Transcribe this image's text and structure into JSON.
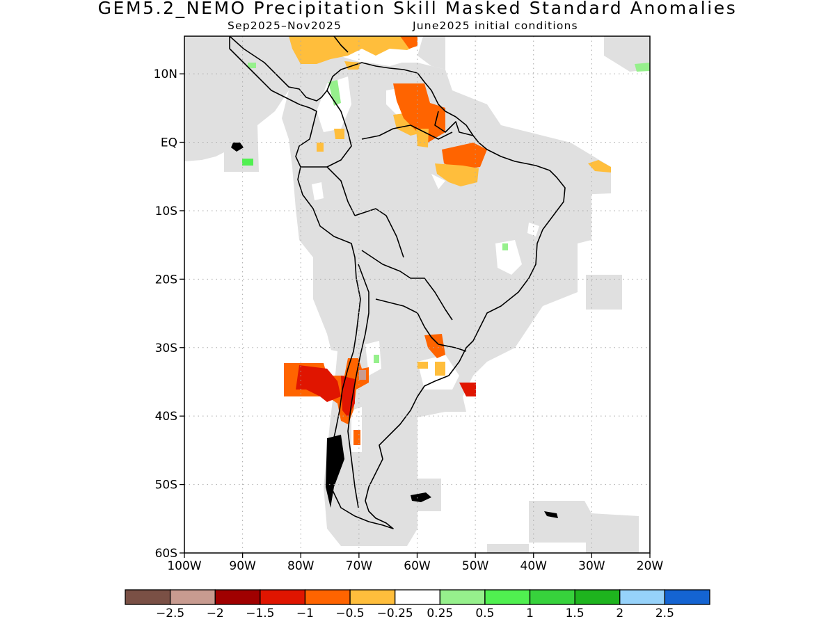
{
  "title": "GEM5.2_NEMO Precipitation Skill Masked Standard Anomalies",
  "subtitle_period": "Sep2025–Nov2025",
  "subtitle_ic": "June2025 initial conditions",
  "axes": {
    "lat_ticks": [
      {
        "value": 10,
        "label": "10N"
      },
      {
        "value": 0,
        "label": "EQ"
      },
      {
        "value": -10,
        "label": "10S"
      },
      {
        "value": -20,
        "label": "20S"
      },
      {
        "value": -30,
        "label": "30S"
      },
      {
        "value": -40,
        "label": "40S"
      },
      {
        "value": -50,
        "label": "50S"
      },
      {
        "value": -60,
        "label": "60S"
      }
    ],
    "lon_ticks": [
      {
        "value": -100,
        "label": "100W"
      },
      {
        "value": -90,
        "label": "90W"
      },
      {
        "value": -80,
        "label": "80W"
      },
      {
        "value": -70,
        "label": "70W"
      },
      {
        "value": -60,
        "label": "60W"
      },
      {
        "value": -50,
        "label": "50W"
      },
      {
        "value": -40,
        "label": "40W"
      },
      {
        "value": -30,
        "label": "30W"
      },
      {
        "value": -20,
        "label": "20W"
      }
    ],
    "lon_range": [
      -100,
      -20
    ],
    "lat_range": [
      -60,
      15.5
    ],
    "grid": true
  },
  "colorbar": {
    "colors": [
      "#7a5045",
      "#c89b90",
      "#a00000",
      "#e01500",
      "#ff6400",
      "#ffbe3c",
      "#ffffff",
      "#96f08c",
      "#50f050",
      "#37d23c",
      "#1eb41e",
      "#96d2fa",
      "#1464d2"
    ],
    "labels": [
      "−2.5",
      "−2",
      "−1.5",
      "−1",
      "−0.5",
      "−0.25",
      "0.25",
      "0.5",
      "1",
      "1.5",
      "2",
      "2.5"
    ]
  },
  "colors": {
    "skill_mask": "#e0e0e0",
    "coast": "#000000"
  }
}
